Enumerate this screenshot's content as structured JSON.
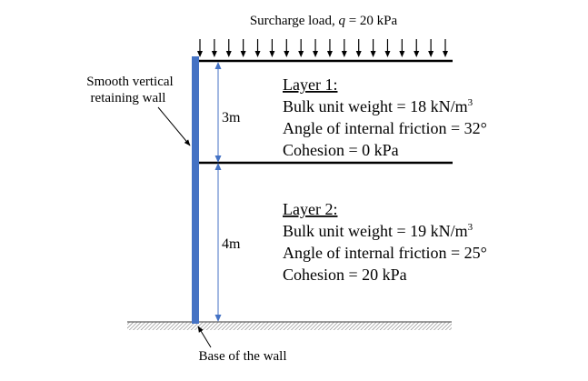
{
  "surcharge": {
    "label_prefix": "Surcharge  load,  ",
    "label_symbol": "q",
    "label_suffix": "  = 20 kPa",
    "arrow_count": 18
  },
  "wall": {
    "label_line1": "Smooth vertical",
    "label_line2": "retaining  wall",
    "base_label": "Base  of  the  wall",
    "color": "#4472c4"
  },
  "dimensions": {
    "upper": "3m",
    "lower": "4m",
    "color": "#4472c4"
  },
  "layer1": {
    "title": "Layer 1:",
    "unit_weight_text": "Bulk unit weight = 18 kN/m",
    "unit_weight_sup": "3",
    "friction": "Angle of internal  friction = 32°",
    "cohesion": "Cohesion = 0 kPa"
  },
  "layer2": {
    "title": "Layer 2:",
    "unit_weight_text": "Bulk unit weight = 19 kN/m",
    "unit_weight_sup": "3",
    "friction": "Angle of internal  friction = 25°",
    "cohesion": "Cohesion = 20 kPa"
  }
}
